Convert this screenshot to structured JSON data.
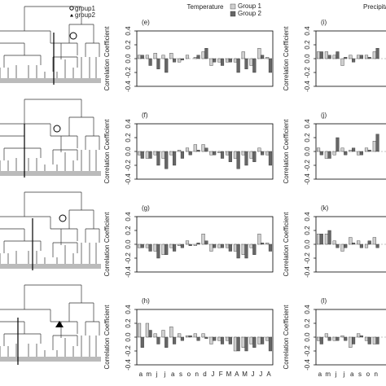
{
  "header": {
    "temperature": "Temperature",
    "precipitation": "Precipitation"
  },
  "dendrogram_legend": [
    "group1",
    "group2"
  ],
  "chart_data": [
    {
      "type": "bar",
      "panel": "(e)",
      "y_label": "Correlation Coefficient",
      "ylim": [
        -0.4,
        0.4
      ],
      "yticks": [
        -0.4,
        -0.2,
        {
          "value": 0,
          "label": "0.0"
        },
        0.2,
        0.4
      ],
      "series": [
        {
          "name": "Group 1",
          "color": "#cfcfcf",
          "values": [
            0.05,
            0.05,
            0.08,
            0.05,
            0.08,
            -0.05,
            0.05,
            0.02,
            0.1,
            -0.1,
            -0.05,
            -0.05,
            -0.05,
            0.1,
            -0.1,
            0.15,
            0.02
          ]
        },
        {
          "name": "Group 2",
          "color": "#666666",
          "values": [
            0.05,
            -0.1,
            -0.15,
            -0.2,
            -0.05,
            -0.02,
            0,
            0.05,
            0.15,
            -0.05,
            -0.1,
            -0.05,
            -0.2,
            -0.15,
            -0.2,
            0.05,
            -0.2
          ]
        }
      ]
    },
    {
      "type": "bar",
      "panel": "(f)",
      "y_label": "Correlation Coefficient",
      "ylim": [
        -0.4,
        0.4
      ],
      "yticks": [
        -0.4,
        -0.2,
        {
          "value": 0,
          "label": "0.0"
        },
        0.2,
        0.4
      ],
      "series": [
        {
          "color": "#cfcfcf",
          "values": [
            -0.05,
            -0.1,
            -0.05,
            -0.1,
            -0.05,
            0.02,
            0.05,
            0.1,
            0.1,
            -0.05,
            -0.02,
            -0.05,
            -0.1,
            -0.05,
            -0.1,
            0.05,
            -0.05
          ]
        },
        {
          "color": "#666666",
          "values": [
            -0.1,
            -0.1,
            -0.2,
            -0.25,
            -0.2,
            -0.1,
            -0.05,
            0.02,
            0.05,
            -0.05,
            -0.1,
            -0.15,
            -0.25,
            -0.2,
            -0.15,
            -0.05,
            -0.2
          ]
        }
      ]
    },
    {
      "type": "bar",
      "panel": "(g)",
      "y_label": "Correlation Coefficient",
      "ylim": [
        -0.4,
        0.4
      ],
      "yticks": [
        -0.4,
        -0.2,
        {
          "value": 0,
          "label": "0.0"
        },
        0.2,
        0.4
      ],
      "series": [
        {
          "color": "#cfcfcf",
          "values": [
            -0.05,
            -0.05,
            -0.1,
            -0.15,
            -0.05,
            -0.02,
            0.05,
            -0.02,
            0.15,
            -0.1,
            -0.05,
            -0.05,
            -0.1,
            -0.15,
            -0.05,
            0.15,
            0.02
          ]
        },
        {
          "color": "#666666",
          "values": [
            -0.05,
            -0.1,
            -0.2,
            -0.15,
            -0.1,
            -0.05,
            -0.02,
            0.02,
            0.05,
            -0.05,
            -0.05,
            -0.1,
            -0.2,
            -0.2,
            -0.15,
            0.02,
            -0.1
          ]
        }
      ]
    },
    {
      "type": "bar",
      "panel": "(h)",
      "y_label": "Correlation Coefficient",
      "ylim": [
        -0.4,
        0.4
      ],
      "yticks": [
        -0.4,
        -0.2,
        {
          "value": 0,
          "label": "0.0"
        },
        0.2,
        0.4
      ],
      "categories": [
        "a",
        "m",
        "j",
        "j",
        "a",
        "s",
        "o",
        "n",
        "d",
        "J",
        "F",
        "M",
        "A",
        "M",
        "J",
        "J",
        "A"
      ],
      "series": [
        {
          "color": "#cfcfcf",
          "values": [
            0.2,
            0.2,
            0.05,
            0.1,
            0.15,
            0.05,
            0.02,
            0.05,
            0.05,
            -0.1,
            -0.05,
            -0.05,
            -0.2,
            -0.15,
            -0.1,
            -0.1,
            -0.05
          ]
        },
        {
          "color": "#666666",
          "values": [
            -0.15,
            0.1,
            -0.1,
            -0.15,
            -0.1,
            -0.05,
            0.02,
            -0.05,
            -0.02,
            -0.05,
            -0.1,
            -0.1,
            -0.2,
            -0.2,
            -0.15,
            -0.1,
            -0.2
          ]
        }
      ]
    },
    {
      "type": "bar",
      "panel": "(i)",
      "y_label": "Correlation Coefficient",
      "ylim": [
        -0.4,
        0.4
      ],
      "yticks": [
        -0.4,
        -0.2,
        {
          "value": 0,
          "label": "0.0"
        },
        0.2,
        0.4
      ],
      "series": [
        {
          "color": "#cfcfcf",
          "values": [
            0.1,
            0.1,
            0.05,
            -0.1,
            0.05,
            0.05,
            0.05,
            0.1
          ]
        },
        {
          "color": "#666666",
          "values": [
            0.1,
            0.05,
            0.1,
            0.02,
            -0.05,
            0.05,
            0.02,
            0.15
          ]
        }
      ]
    },
    {
      "type": "bar",
      "panel": "(j)",
      "y_label": "Correlation Coefficient",
      "ylim": [
        -0.4,
        0.4
      ],
      "yticks": [
        -0.4,
        -0.2,
        {
          "value": 0,
          "label": "0.0"
        },
        0.2,
        0.4
      ],
      "series": [
        {
          "color": "#cfcfcf",
          "values": [
            0.05,
            -0.1,
            -0.05,
            0.05,
            0.02,
            -0.05,
            0.05,
            0.15
          ]
        },
        {
          "color": "#666666",
          "values": [
            -0.05,
            -0.1,
            0.2,
            -0.05,
            0.05,
            -0.05,
            0.02,
            0.25
          ]
        }
      ]
    },
    {
      "type": "bar",
      "panel": "(k)",
      "y_label": "Correlation Coefficient",
      "ylim": [
        -0.4,
        0.4
      ],
      "yticks": [
        -0.4,
        -0.2,
        {
          "value": 0,
          "label": "0.0"
        },
        0.2,
        0.4
      ],
      "series": [
        {
          "color": "#cfcfcf",
          "values": [
            0.15,
            0.15,
            0.05,
            -0.1,
            0.1,
            0.05,
            -0.05,
            0.1
          ]
        },
        {
          "color": "#666666",
          "values": [
            0.15,
            0.2,
            -0.05,
            -0.05,
            0.02,
            -0.05,
            0.05,
            -0.05
          ]
        }
      ]
    },
    {
      "type": "bar",
      "panel": "(l)",
      "y_label": "Correlation Coefficient",
      "ylim": [
        -0.4,
        0.4
      ],
      "yticks": [
        -0.4,
        -0.2,
        {
          "value": 0,
          "label": "0.0"
        },
        0.2,
        0.4
      ],
      "categories": [
        "a",
        "m",
        "j",
        "j",
        "a",
        "s",
        "o",
        "n"
      ],
      "series": [
        {
          "color": "#cfcfcf",
          "values": [
            -0.05,
            0.05,
            -0.05,
            0.02,
            -0.15,
            0.05,
            -0.05,
            -0.1
          ]
        },
        {
          "color": "#666666",
          "values": [
            -0.1,
            -0.05,
            -0.05,
            -0.05,
            -0.1,
            0.02,
            -0.1,
            -0.1
          ]
        }
      ]
    }
  ]
}
